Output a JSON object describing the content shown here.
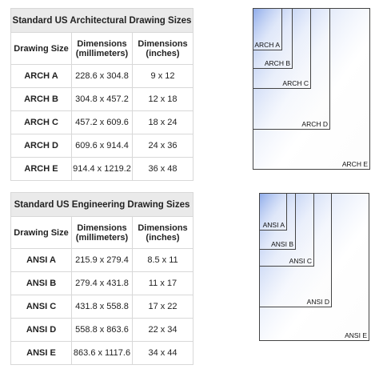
{
  "tables": [
    {
      "title": "Standard US Architectural Drawing Sizes",
      "headers": [
        "Drawing Size",
        "Dimensions\n(millimeters)",
        "Dimensions\n(inches)"
      ],
      "rows": [
        [
          "ARCH A",
          "228.6 x 304.8",
          "9 x 12"
        ],
        [
          "ARCH B",
          "304.8 x 457.2",
          "12 x 18"
        ],
        [
          "ARCH C",
          "457.2 x 609.6",
          "18 x 24"
        ],
        [
          "ARCH D",
          "609.6 x 914.4",
          "24 x 36"
        ],
        [
          "ARCH E",
          "914.4 x 1219.2",
          "36 x 48"
        ]
      ]
    },
    {
      "title": "Standard US Engineering Drawing Sizes",
      "headers": [
        "Drawing Size",
        "Dimensions\n(millimeters)",
        "Dimensions\n(inches)"
      ],
      "rows": [
        [
          "ANSI A",
          "215.9 x 279.4",
          "8.5 x 11"
        ],
        [
          "ANSI B",
          "279.4 x 431.8",
          "11 x 17"
        ],
        [
          "ANSI C",
          "431.8 x 558.8",
          "17 x 22"
        ],
        [
          "ANSI D",
          "558.8 x 863.6",
          "22 x 34"
        ],
        [
          "ANSI E",
          "863.6 x 1117.6",
          "34 x 44"
        ]
      ]
    }
  ],
  "diagrams": [
    {
      "labels": [
        "ARCH E",
        "ARCH D",
        "ARCH C",
        "ARCH B",
        "ARCH A"
      ]
    },
    {
      "labels": [
        "ANSI E",
        "ANSI D",
        "ANSI C",
        "ANSI B",
        "ANSI A"
      ]
    }
  ]
}
